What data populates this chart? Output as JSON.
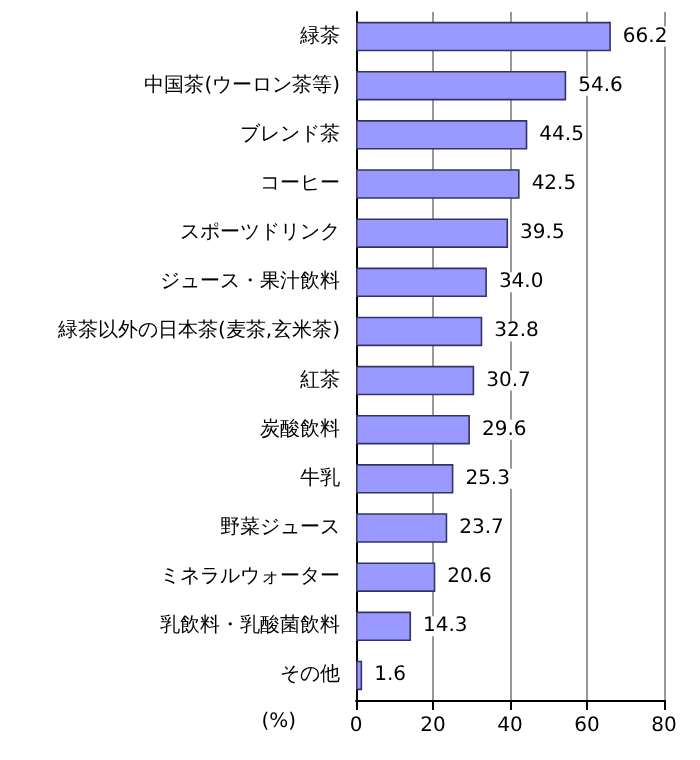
{
  "chart_data": {
    "type": "bar",
    "orientation": "horizontal",
    "categories": [
      "緑茶",
      "中国茶(ウーロン茶等)",
      "ブレンド茶",
      "コーヒー",
      "スポーツドリンク",
      "ジュース・果汁飲料",
      "緑茶以外の日本茶(麦茶,玄米茶)",
      "紅茶",
      "炭酸飲料",
      "牛乳",
      "野菜ジュース",
      "ミネラルウォーター",
      "乳飲料・乳酸菌飲料",
      "その他"
    ],
    "values": [
      66.2,
      54.6,
      44.5,
      42.5,
      39.5,
      34.0,
      32.8,
      30.7,
      29.6,
      25.3,
      23.7,
      20.6,
      14.3,
      1.6
    ],
    "value_labels": [
      "66.2",
      "54.6",
      "44.5",
      "42.5",
      "39.5",
      "34.0",
      "32.8",
      "30.7",
      "29.6",
      "25.3",
      "23.7",
      "20.6",
      "14.3",
      "1.6"
    ],
    "color": "#9999ff",
    "xlim": [
      0,
      80
    ],
    "xticks": [
      0,
      20,
      40,
      60,
      80
    ],
    "xlabel": "(%)",
    "grid": "x"
  }
}
